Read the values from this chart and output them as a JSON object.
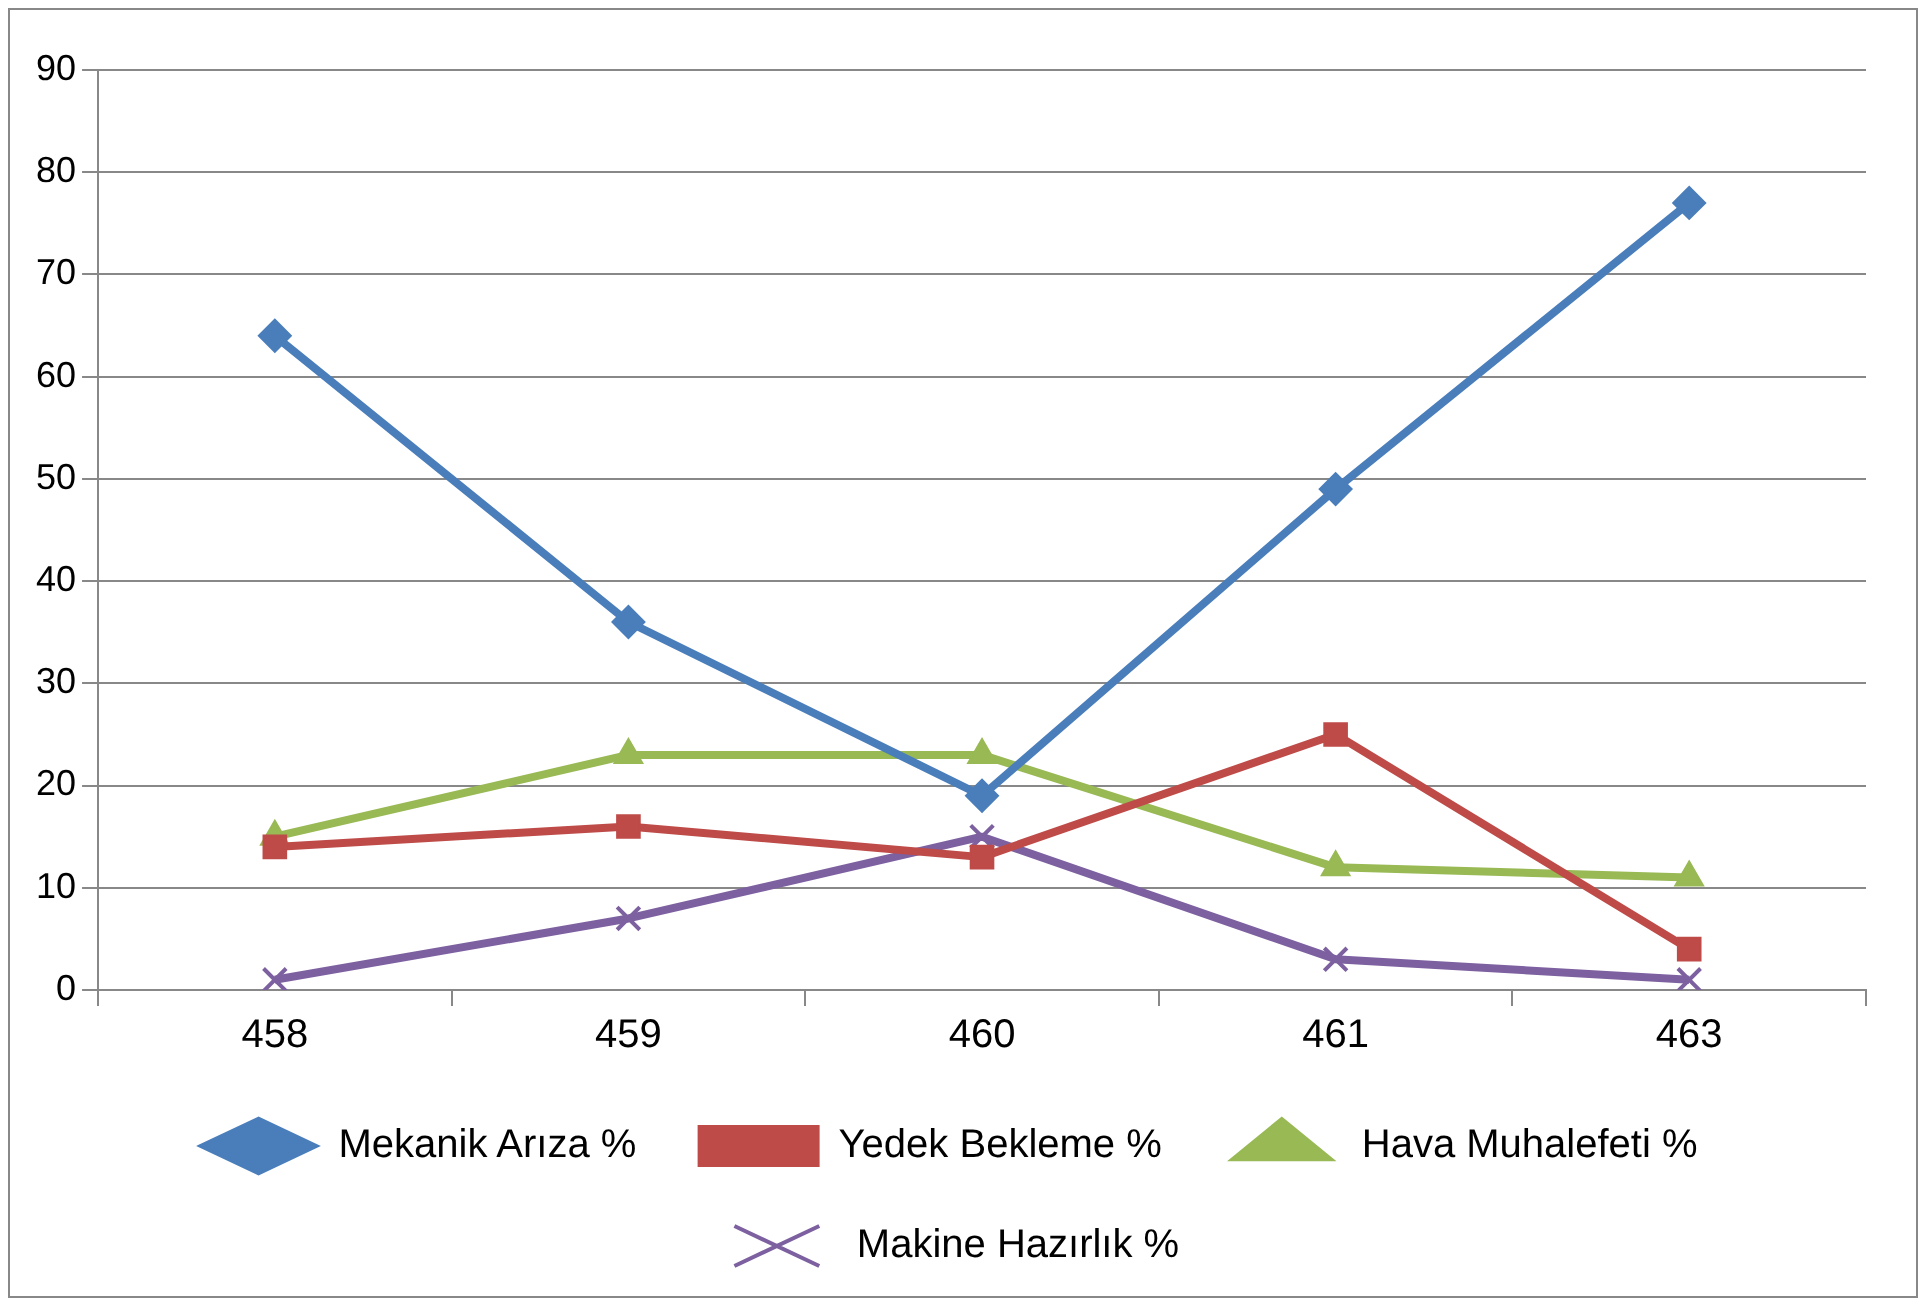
{
  "chart_data": {
    "type": "line",
    "categories": [
      "458",
      "459",
      "460",
      "461",
      "463"
    ],
    "series": [
      {
        "name": "Mekanik Arıza %",
        "color": "#4a7ebb",
        "marker": "diamond",
        "values": [
          64,
          36,
          19,
          49,
          77
        ]
      },
      {
        "name": "Yedek Bekleme %",
        "color": "#be4b48",
        "marker": "square",
        "values": [
          14,
          16,
          13,
          25,
          4
        ]
      },
      {
        "name": "Hava Muhalefeti %",
        "color": "#98b954",
        "marker": "triangle",
        "values": [
          15,
          23,
          23,
          12,
          11
        ]
      },
      {
        "name": "Makine Hazırlık %",
        "color": "#7d60a0",
        "marker": "cross",
        "values": [
          1,
          7,
          15,
          3,
          1
        ]
      }
    ],
    "ylim": [
      0,
      90
    ],
    "yticks": [
      0,
      10,
      20,
      30,
      40,
      50,
      60,
      70,
      80,
      90
    ],
    "grid": "y",
    "legend": "bottom",
    "line_style": "solid"
  }
}
